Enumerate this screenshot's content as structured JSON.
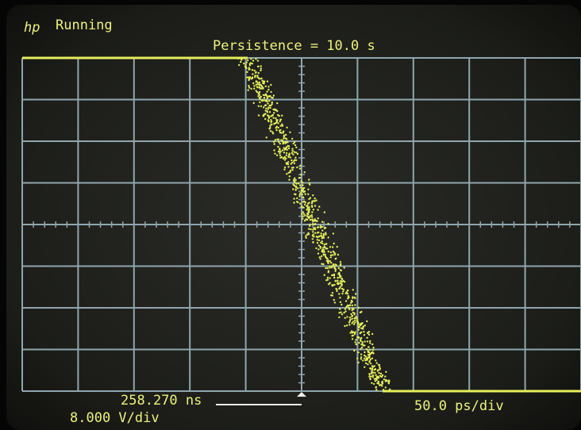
{
  "header": {
    "logo": "hp",
    "status": "Running",
    "persistence": "Persistence = 10.0 s"
  },
  "footer": {
    "time_ref": "258.270 ns",
    "vertical_scale": "8.000 V/div",
    "time_scale": "50.0 ps/div"
  }
}
